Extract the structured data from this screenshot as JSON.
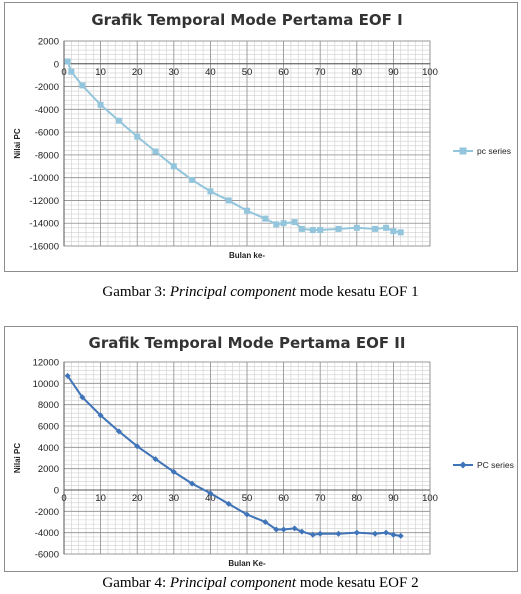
{
  "figures": [
    {
      "caption": {
        "prefix": "Gambar 3: ",
        "italic": "Principal component",
        "suffix": "  mode kesatu EOF 1"
      }
    },
    {
      "caption": {
        "prefix": "Gambar 4: ",
        "italic": "Principal component",
        "suffix": "  mode kesatu EOF 2"
      }
    }
  ],
  "chart_data": [
    {
      "type": "line",
      "title": "Grafik Temporal Mode Pertama EOF I",
      "xlabel": "Bulan ke-",
      "ylabel": "Nilai PC",
      "xlim": [
        0,
        100
      ],
      "ylim": [
        -16000,
        2000
      ],
      "xticks": [
        0,
        10,
        20,
        30,
        40,
        50,
        60,
        70,
        80,
        90,
        100
      ],
      "yticks": [
        2000,
        0,
        -2000,
        -4000,
        -6000,
        -8000,
        -10000,
        -12000,
        -14000,
        -16000
      ],
      "grid": true,
      "legend_position": "right",
      "marker": "square",
      "color": "#93c6dc",
      "x_axis_at_zero": true,
      "series": [
        {
          "name": "pc series",
          "x": [
            1,
            2,
            5,
            10,
            15,
            20,
            25,
            30,
            35,
            40,
            45,
            50,
            55,
            58,
            60,
            63,
            65,
            68,
            70,
            75,
            80,
            85,
            88,
            90,
            92
          ],
          "values": [
            200,
            -700,
            -1900,
            -3600,
            -5000,
            -6400,
            -7700,
            -9000,
            -10200,
            -11200,
            -12000,
            -12900,
            -13600,
            -14100,
            -14000,
            -13900,
            -14500,
            -14600,
            -14600,
            -14500,
            -14400,
            -14500,
            -14400,
            -14700,
            -14800
          ]
        }
      ]
    },
    {
      "type": "line",
      "title": "Grafik Temporal Mode Pertama EOF II",
      "xlabel": "Bulan Ke-",
      "ylabel": "Nilai PC",
      "xlim": [
        0,
        100
      ],
      "ylim": [
        -6000,
        12000
      ],
      "xticks": [
        0,
        10,
        20,
        30,
        40,
        50,
        60,
        70,
        80,
        90,
        100
      ],
      "yticks": [
        12000,
        10000,
        8000,
        6000,
        4000,
        2000,
        0,
        -2000,
        -4000,
        -6000
      ],
      "grid": true,
      "legend_position": "right",
      "marker": "diamond",
      "color": "#3f74b9",
      "x_axis_at_zero": true,
      "series": [
        {
          "name": "PC series",
          "x": [
            1,
            5,
            10,
            15,
            20,
            25,
            30,
            35,
            40,
            45,
            50,
            55,
            58,
            60,
            63,
            65,
            68,
            70,
            75,
            80,
            85,
            88,
            90,
            92
          ],
          "values": [
            10700,
            8700,
            7000,
            5500,
            4100,
            2900,
            1700,
            600,
            -300,
            -1300,
            -2300,
            -3000,
            -3700,
            -3700,
            -3600,
            -3900,
            -4200,
            -4100,
            -4100,
            -4000,
            -4100,
            -4000,
            -4200,
            -4300
          ]
        }
      ]
    }
  ]
}
